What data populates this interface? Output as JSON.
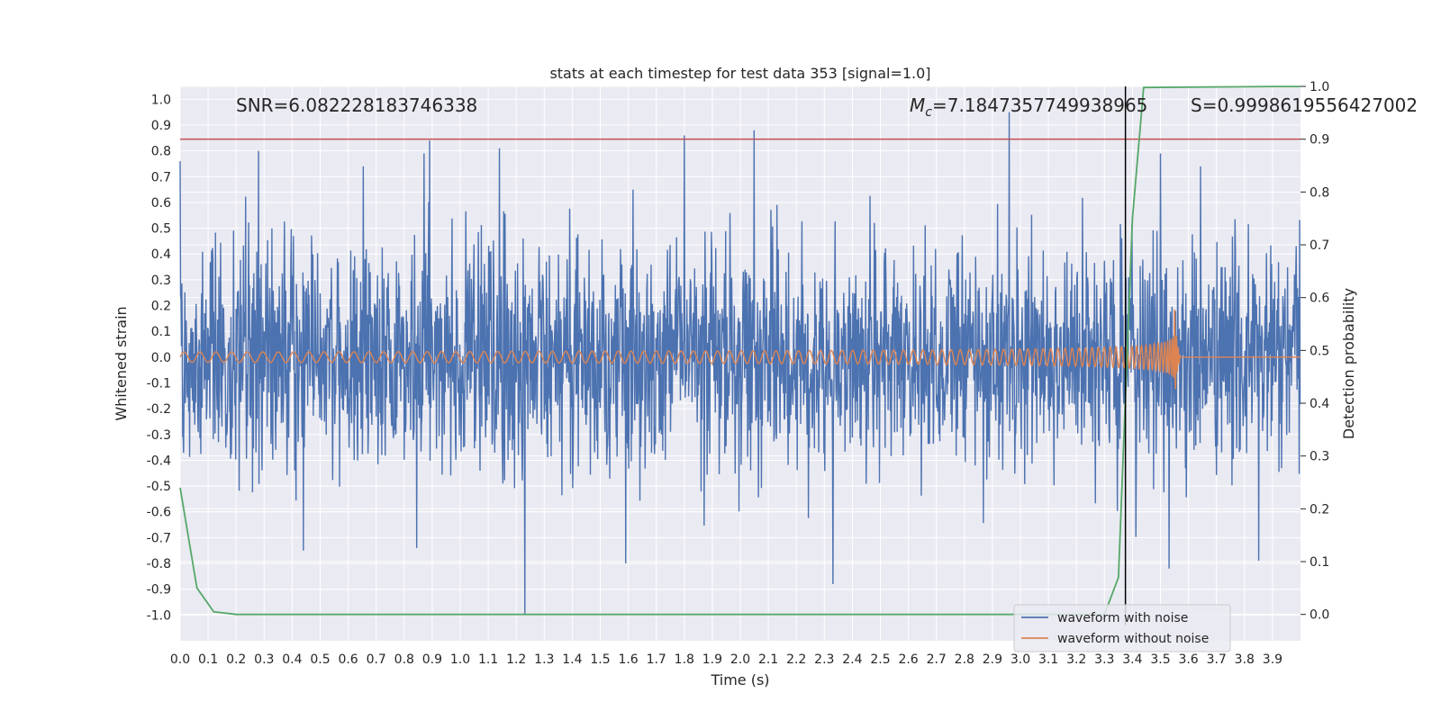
{
  "chart_data": {
    "type": "line",
    "title": "stats at each timestep for test data 353 [signal=1.0]",
    "xlabel": "Time (s)",
    "ylabel": "Whitened strain",
    "y2label": "Detection probability",
    "xlim": [
      0.0,
      4.0
    ],
    "ylim": [
      -1.1,
      1.05
    ],
    "y2lim": [
      -0.05,
      1.0
    ],
    "x_ticks": [
      0.0,
      0.1,
      0.2,
      0.3,
      0.4,
      0.5,
      0.6,
      0.7,
      0.8,
      0.9,
      1.0,
      1.1,
      1.2,
      1.3,
      1.4,
      1.5,
      1.6,
      1.7,
      1.8,
      1.9,
      2.0,
      2.1,
      2.2,
      2.3,
      2.4,
      2.5,
      2.6,
      2.7,
      2.8,
      2.9,
      3.0,
      3.1,
      3.2,
      3.3,
      3.4,
      3.5,
      3.6,
      3.7,
      3.8,
      3.9
    ],
    "y_ticks": [
      1.0,
      0.9,
      0.8,
      0.7,
      0.6,
      0.5,
      0.4,
      0.3,
      0.2,
      0.1,
      0.0,
      -0.1,
      -0.2,
      -0.3,
      -0.4,
      -0.5,
      -0.6,
      -0.7,
      -0.8,
      -0.9,
      -1.0
    ],
    "y2_ticks": [
      1.0,
      0.9,
      0.8,
      0.7,
      0.6,
      0.5,
      0.4,
      0.3,
      0.2,
      0.1,
      0.0
    ],
    "grid": true,
    "legend_position": "bottom-right",
    "annotations": {
      "snr": "SNR=6.082228183746338",
      "mc_symbol": "M",
      "mc_sub": "c",
      "mc_value": "=7.1847357749938965",
      "s": "S=0.9998619556427002"
    },
    "threshold": {
      "value": 0.9,
      "axis": "right",
      "color": "#c44e52"
    },
    "vertical_marker": {
      "x": 3.375,
      "color": "#000000"
    },
    "series": [
      {
        "name": "waveform with noise",
        "color": "#4c72b0",
        "axis": "left",
        "envelope_typical": 0.3,
        "notable_peaks": [
          {
            "x": 0.0,
            "y": 0.76
          },
          {
            "x": 0.28,
            "y": 0.8
          },
          {
            "x": 0.87,
            "y": 0.79
          },
          {
            "x": 0.89,
            "y": 0.84
          },
          {
            "x": 1.14,
            "y": 0.81
          },
          {
            "x": 1.8,
            "y": 0.86
          },
          {
            "x": 2.05,
            "y": 0.88
          },
          {
            "x": 2.96,
            "y": 0.95
          },
          {
            "x": 3.5,
            "y": 0.79
          },
          {
            "x": 1.23,
            "y": -1.0
          },
          {
            "x": 0.44,
            "y": -0.75
          },
          {
            "x": 2.33,
            "y": -0.88
          },
          {
            "x": 1.59,
            "y": -0.8
          },
          {
            "x": 3.85,
            "y": -0.79
          },
          {
            "x": 3.53,
            "y": -0.82
          }
        ]
      },
      {
        "name": "waveform without noise",
        "color": "#dd8452",
        "axis": "left",
        "description_values": {
          "start_amplitude": 0.02,
          "merger_time": 3.55,
          "merger_amplitude": 0.2
        }
      },
      {
        "name": "detection probability",
        "color": "#55a868",
        "axis": "right",
        "x": [
          0.0,
          0.06,
          0.12,
          0.2,
          0.5,
          1.0,
          2.0,
          3.0,
          3.3,
          3.35,
          3.4,
          3.44,
          3.9,
          4.0
        ],
        "y": [
          0.24,
          0.05,
          0.005,
          0.0,
          0.0,
          0.0,
          0.0,
          0.0,
          0.0,
          0.07,
          0.75,
          0.998,
          0.9998,
          0.9998
        ]
      }
    ]
  }
}
